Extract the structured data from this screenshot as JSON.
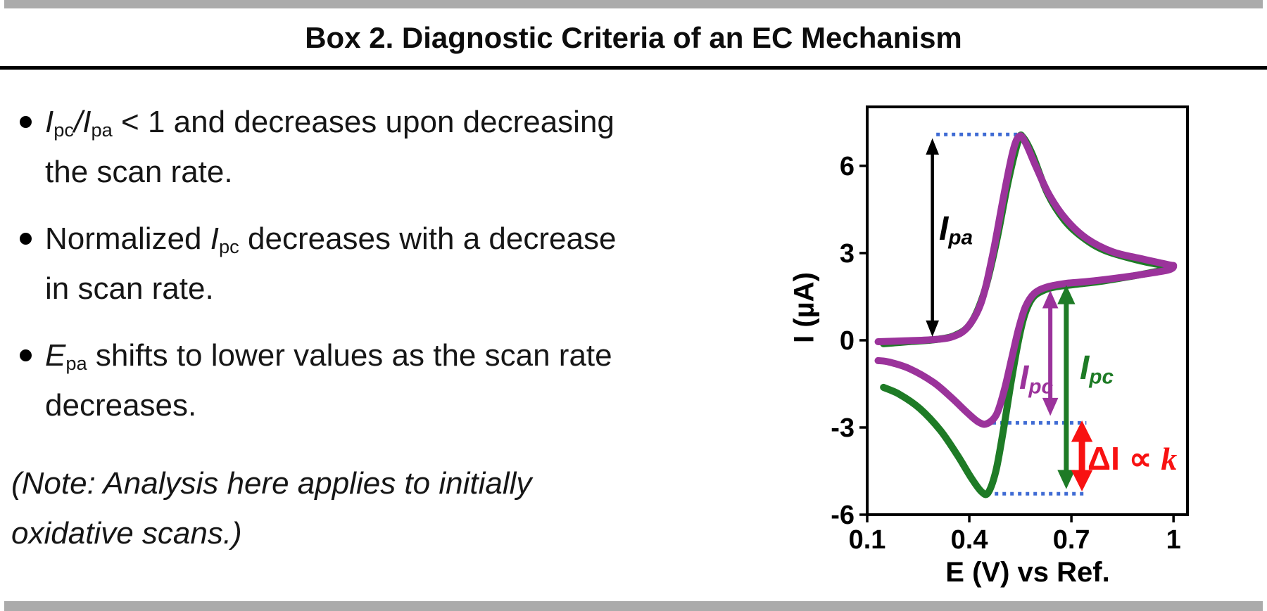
{
  "title": "Box 2. Diagnostic Criteria of an EC Mechanism",
  "bullets": [
    {
      "segments": [
        {
          "t": "I",
          "s": "i"
        },
        {
          "t": "pc",
          "s": "sub"
        },
        {
          "t": "/",
          "s": "i"
        },
        {
          "t": "I",
          "s": "i"
        },
        {
          "t": "pa",
          "s": "sub"
        },
        {
          "t": " < 1 and decreases upon decreasing",
          "s": "n"
        },
        {
          "s": "br"
        },
        {
          "t": "the scan rate.",
          "s": "n"
        }
      ]
    },
    {
      "segments": [
        {
          "t": "Normalized ",
          "s": "n"
        },
        {
          "t": "I",
          "s": "i"
        },
        {
          "t": "pc",
          "s": "sub"
        },
        {
          "t": " decreases with a decrease",
          "s": "n"
        },
        {
          "s": "br"
        },
        {
          "t": "in scan rate.",
          "s": "n"
        }
      ]
    },
    {
      "segments": [
        {
          "t": "E",
          "s": "i"
        },
        {
          "t": "pa",
          "s": "sub"
        },
        {
          "t": " shifts to lower values as the scan rate",
          "s": "n"
        },
        {
          "s": "br"
        },
        {
          "t": "decreases.",
          "s": "n"
        }
      ]
    }
  ],
  "note": {
    "segments": [
      {
        "t": "(Note: Analysis here applies to initially",
        "s": "i"
      },
      {
        "s": "br"
      },
      {
        "t": "oxidative scans.)",
        "s": "i"
      }
    ]
  },
  "chart_data": {
    "type": "line",
    "title": "",
    "xlabel": "E (V) vs Ref.",
    "ylabel": "I (µA)",
    "x_ticks": [
      "0.1",
      "0.4",
      "0.7",
      "1"
    ],
    "x_tick_values": [
      0.1,
      0.4,
      0.7,
      1
    ],
    "y_ticks": [
      "6",
      "3",
      "0",
      "-3",
      "-6"
    ],
    "y_tick_values": [
      6,
      3,
      0,
      -3,
      -6
    ],
    "xlim": [
      0.1,
      1.041
    ],
    "ylim": [
      -6,
      8.03
    ],
    "grid": false,
    "legend": "none",
    "series": [
      {
        "name": "cv-slow-scan-green",
        "color": "#1E7B26",
        "stroke_width": 10,
        "points": [
          [
            0.148,
            -0.12
          ],
          [
            0.22,
            -0.05
          ],
          [
            0.3,
            0.02
          ],
          [
            0.36,
            0.18
          ],
          [
            0.405,
            0.6
          ],
          [
            0.445,
            1.7
          ],
          [
            0.48,
            3.4
          ],
          [
            0.515,
            5.5
          ],
          [
            0.545,
            6.9
          ],
          [
            0.558,
            6.98
          ],
          [
            0.585,
            6.4
          ],
          [
            0.63,
            5.05
          ],
          [
            0.68,
            4.12
          ],
          [
            0.735,
            3.52
          ],
          [
            0.8,
            3.08
          ],
          [
            0.9,
            2.74
          ],
          [
            0.99,
            2.5
          ],
          [
            0.93,
            2.32
          ],
          [
            0.85,
            2.15
          ],
          [
            0.78,
            2.02
          ],
          [
            0.71,
            1.92
          ],
          [
            0.655,
            1.84
          ],
          [
            0.615,
            1.7
          ],
          [
            0.585,
            1.44
          ],
          [
            0.562,
            0.85
          ],
          [
            0.543,
            -0.1
          ],
          [
            0.522,
            -1.5
          ],
          [
            0.5,
            -3.1
          ],
          [
            0.478,
            -4.5
          ],
          [
            0.455,
            -5.25
          ],
          [
            0.435,
            -5.2
          ],
          [
            0.405,
            -4.72
          ],
          [
            0.365,
            -3.95
          ],
          [
            0.315,
            -3.1
          ],
          [
            0.255,
            -2.35
          ],
          [
            0.195,
            -1.86
          ],
          [
            0.148,
            -1.62
          ]
        ]
      },
      {
        "name": "cv-fast-scan-purple",
        "color": "#9B339B",
        "stroke_width": 10,
        "points": [
          [
            0.132,
            -0.05
          ],
          [
            0.21,
            -0.02
          ],
          [
            0.29,
            0.02
          ],
          [
            0.35,
            0.12
          ],
          [
            0.395,
            0.45
          ],
          [
            0.435,
            1.3
          ],
          [
            0.468,
            2.9
          ],
          [
            0.5,
            4.9
          ],
          [
            0.528,
            6.5
          ],
          [
            0.547,
            7.02
          ],
          [
            0.565,
            6.8
          ],
          [
            0.595,
            6.0
          ],
          [
            0.635,
            5.0
          ],
          [
            0.685,
            4.15
          ],
          [
            0.745,
            3.5
          ],
          [
            0.82,
            3.05
          ],
          [
            0.9,
            2.82
          ],
          [
            0.985,
            2.6
          ],
          [
            1.0,
            2.56
          ],
          [
            0.985,
            2.42
          ],
          [
            0.9,
            2.25
          ],
          [
            0.82,
            2.12
          ],
          [
            0.745,
            2.02
          ],
          [
            0.68,
            1.95
          ],
          [
            0.625,
            1.82
          ],
          [
            0.59,
            1.6
          ],
          [
            0.565,
            1.15
          ],
          [
            0.545,
            0.4
          ],
          [
            0.525,
            -0.6
          ],
          [
            0.503,
            -1.7
          ],
          [
            0.48,
            -2.55
          ],
          [
            0.452,
            -2.87
          ],
          [
            0.428,
            -2.82
          ],
          [
            0.395,
            -2.5
          ],
          [
            0.35,
            -2.0
          ],
          [
            0.295,
            -1.45
          ],
          [
            0.225,
            -0.98
          ],
          [
            0.165,
            -0.75
          ],
          [
            0.132,
            -0.7
          ]
        ]
      }
    ],
    "dotted_guides": {
      "color": "#3F6BD4",
      "lines": [
        {
          "name": "ipa-peak-guide",
          "i": 7.08,
          "e1": 0.303,
          "e2": 0.549
        },
        {
          "name": "ipc-purple-trough-guide",
          "i": -2.84,
          "e1": 0.468,
          "e2": 0.744
        },
        {
          "name": "ipc-green-trough-guide",
          "i": -5.28,
          "e1": 0.452,
          "e2": 0.744
        }
      ]
    },
    "arrows": [
      {
        "name": "ipa-arrow",
        "color": "#000000",
        "e": 0.2916,
        "i1": 6.95,
        "i2": 0.12,
        "width": 4.5
      },
      {
        "name": "ipc-purple-arrow",
        "color": "#9B339B",
        "e": 0.638,
        "i1": 1.72,
        "i2": -2.6,
        "width": 6
      },
      {
        "name": "ipc-green-arrow",
        "color": "#1E7B26",
        "e": 0.685,
        "i1": 1.9,
        "i2": -5.12,
        "width": 7
      },
      {
        "name": "delta-i-arrow",
        "color": "#F81212",
        "e": 0.731,
        "i1": -2.76,
        "i2": -5.2,
        "width": 9
      }
    ],
    "labels": {
      "ipa": {
        "color": "#000000",
        "segments": [
          {
            "t": "I",
            "s": "i"
          },
          {
            "t": "pa",
            "s": "isub"
          }
        ]
      },
      "ipc_purple": {
        "color": "#9B339B",
        "segments": [
          {
            "t": "I",
            "s": "i"
          },
          {
            "t": "pc",
            "s": "isub"
          }
        ]
      },
      "ipc_green": {
        "color": "#1E7B26",
        "segments": [
          {
            "t": "I",
            "s": "i"
          },
          {
            "t": "pc",
            "s": "isub"
          }
        ]
      },
      "delta": {
        "color": "#F81212",
        "segments": [
          {
            "t": "ΔI ∝ ",
            "s": "n"
          },
          {
            "t": "k",
            "s": "iserif"
          }
        ]
      }
    }
  },
  "colors": {
    "bar_gray": "#ABABAB",
    "rule_black": "#000000"
  }
}
